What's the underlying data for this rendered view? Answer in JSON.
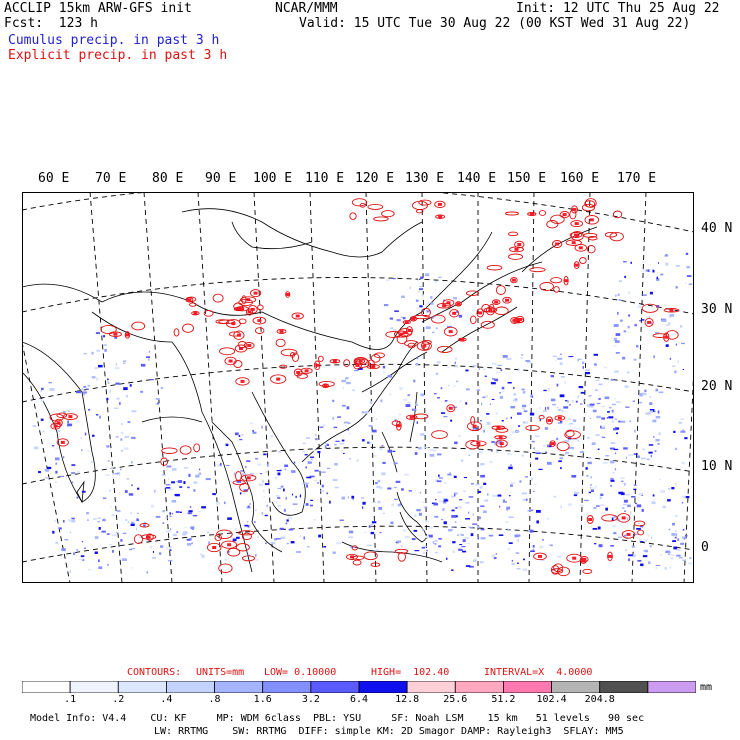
{
  "header": {
    "model": "ACCLIP 15km ARW-GFS init",
    "fcst": "Fcst:  123 h",
    "org": "NCAR/MMM",
    "init": "Init: 12 UTC Thu 25 Aug 22",
    "valid": "Valid: 15 UTC Tue 30 Aug 22 (00 KST Wed 31 Aug 22)",
    "cumulus": "Cumulus precip. in past 3 h",
    "explicit": "Explicit precip. in past 3 h"
  },
  "legend_colors": {
    "cumulus": "#2222cc",
    "explicit": "#dd1111"
  },
  "map": {
    "lon_labels": [
      "60 E",
      "70 E",
      "80 E",
      "90 E",
      "100 E",
      "110 E",
      "120 E",
      "130 E",
      "140 E",
      "150 E",
      "160 E",
      "170 E"
    ],
    "lat_labels": [
      "40 N",
      "30 N",
      "20 N",
      "10 N",
      "0"
    ]
  },
  "contours": {
    "label": "CONTOURS:",
    "units": "UNITS=mm",
    "low": "LOW= 0.10000",
    "high": "HIGH=  102.40",
    "interval": "INTERVAL=X  4.0000"
  },
  "colorbar": {
    "ticks": [
      ".1",
      ".2",
      ".4",
      ".8",
      "1.6",
      "3.2",
      "6.4",
      "12.8",
      "25.6",
      "51.2",
      "102.4",
      "204.8"
    ],
    "unit": "mm",
    "colors": [
      "#ffffff",
      "#f0f4ff",
      "#dde6ff",
      "#c4d2ff",
      "#a4b4ff",
      "#8590ff",
      "#5a5aff",
      "#1010ee",
      "#ffd0d8",
      "#ffa8c0",
      "#ff78b0",
      "#b4b4b4",
      "#505050",
      "#cc9cf0"
    ]
  },
  "footer": {
    "line1": "Model Info: V4.4    CU: KF     MP: WDM 6class  PBL: YSU     SF: Noah LSM    15 km   51 levels   90 sec",
    "line2": "LW: RRTMG    SW: RRTMG  DIFF: simple KM: 2D Smagor DAMP: Rayleigh3  SFLAY: MM5"
  }
}
